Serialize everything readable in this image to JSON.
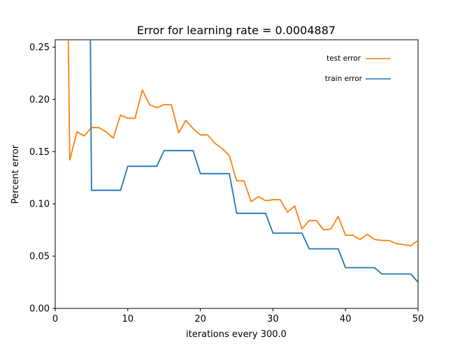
{
  "chart_data": {
    "type": "line",
    "title": "Error for learning rate = 0.0004887",
    "xlabel": "iterations every 300.0",
    "ylabel": "Percent error",
    "xlim": [
      0,
      50
    ],
    "ylim": [
      0,
      0.257
    ],
    "xticks": [
      "0",
      "10",
      "20",
      "30",
      "40",
      "50"
    ],
    "yticks": [
      "0.00",
      "0.05",
      "0.10",
      "0.15",
      "0.20",
      "0.25"
    ],
    "legend_position": "top-right",
    "grid": false,
    "series": [
      {
        "name": "test error",
        "color": "#ff7f0e",
        "x": [
          1.8,
          2,
          3,
          4,
          5,
          6,
          7,
          8,
          9,
          10,
          11,
          12,
          13,
          14,
          15,
          16,
          17,
          18,
          19,
          20,
          21,
          22,
          23,
          24,
          25,
          26,
          27,
          28,
          29,
          30,
          31,
          32,
          33,
          34,
          35,
          36,
          37,
          38,
          39,
          40,
          41,
          42,
          43,
          44,
          45,
          46,
          47,
          48,
          49,
          50
        ],
        "y": [
          0.257,
          0.142,
          0.169,
          0.165,
          0.173,
          0.173,
          0.169,
          0.163,
          0.185,
          0.182,
          0.182,
          0.209,
          0.195,
          0.192,
          0.195,
          0.195,
          0.168,
          0.18,
          0.172,
          0.166,
          0.166,
          0.158,
          0.153,
          0.146,
          0.122,
          0.122,
          0.102,
          0.107,
          0.103,
          0.104,
          0.104,
          0.092,
          0.098,
          0.076,
          0.084,
          0.084,
          0.075,
          0.076,
          0.088,
          0.07,
          0.07,
          0.066,
          0.071,
          0.066,
          0.065,
          0.065,
          0.062,
          0.061,
          0.06,
          0.065
        ]
      },
      {
        "name": "train  error",
        "color": "#1f77b4",
        "x": [
          4.7,
          4.85,
          5,
          9,
          10,
          14,
          15,
          19,
          20,
          24,
          25,
          29,
          30,
          34,
          35,
          39,
          40,
          44,
          45,
          49,
          50
        ],
        "y": [
          0.257,
          0.257,
          0.113,
          0.113,
          0.136,
          0.136,
          0.151,
          0.151,
          0.129,
          0.129,
          0.091,
          0.091,
          0.072,
          0.072,
          0.057,
          0.057,
          0.039,
          0.039,
          0.033,
          0.033,
          0.025
        ]
      }
    ]
  }
}
